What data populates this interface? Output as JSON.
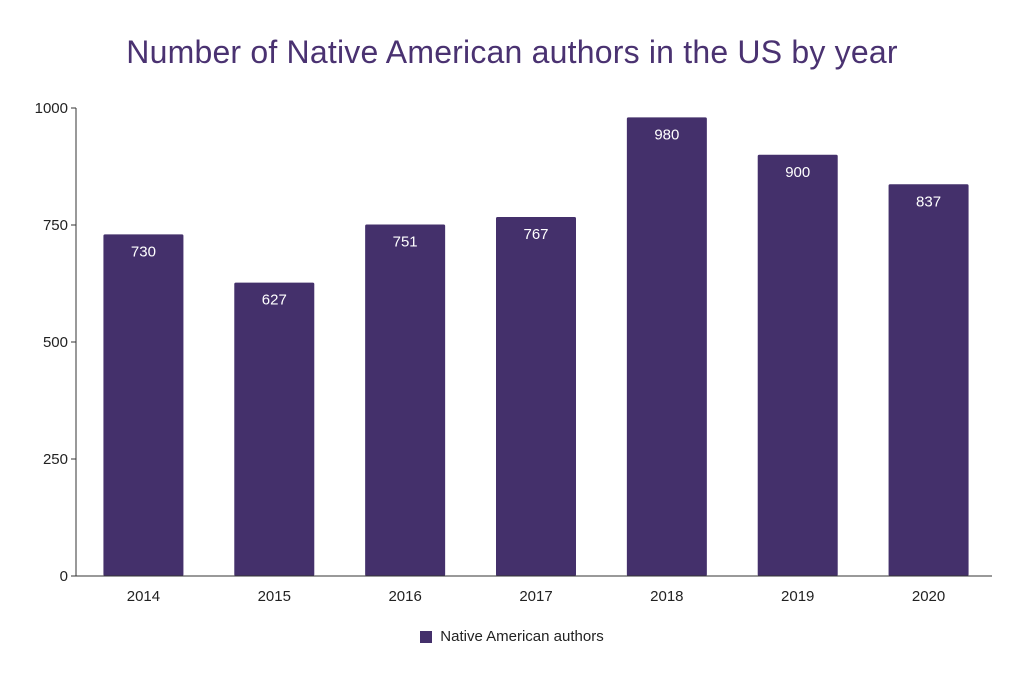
{
  "chart_data": {
    "type": "bar",
    "title": "Number of Native American authors in the US by year",
    "xlabel": "",
    "ylabel": "",
    "categories": [
      "2014",
      "2015",
      "2016",
      "2017",
      "2018",
      "2019",
      "2020"
    ],
    "series": [
      {
        "name": "Native American authors",
        "values": [
          730,
          627,
          751,
          767,
          980,
          900,
          837
        ],
        "color": "#44306b"
      }
    ],
    "ylim": [
      0,
      1000
    ],
    "yticks": [
      0,
      250,
      500,
      750,
      1000
    ],
    "grid": false,
    "legend_position": "bottom",
    "data_labels": true,
    "title_color": "#4a3271"
  }
}
